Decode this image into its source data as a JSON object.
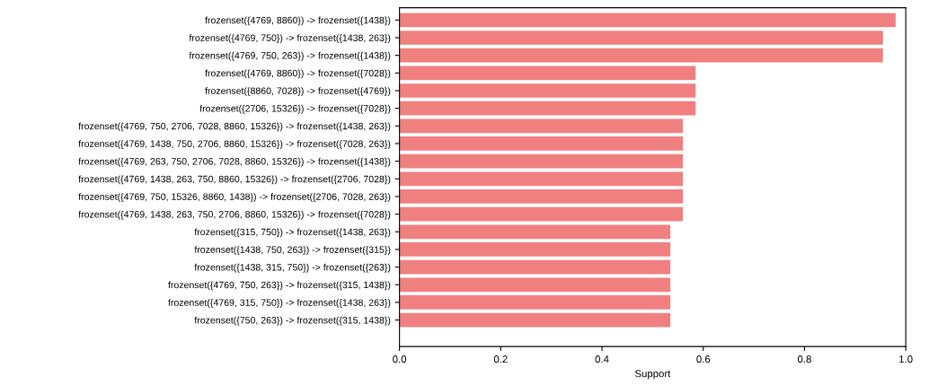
{
  "chart_data": {
    "type": "bar",
    "orientation": "horizontal",
    "xlabel": "Support",
    "categories": [
      "frozenset({4769, 8860}) -> frozenset({1438})",
      "frozenset({4769, 750}) -> frozenset({1438, 263})",
      "frozenset({4769, 750, 263}) -> frozenset({1438})",
      "frozenset({4769, 8860}) -> frozenset({7028})",
      "frozenset({8860, 7028}) -> frozenset({4769})",
      "frozenset({2706, 15326}) -> frozenset({7028})",
      "frozenset({4769, 750, 2706, 7028, 8860, 15326}) -> frozenset({1438, 263})",
      "frozenset({4769, 1438, 750, 2706, 8860, 15326}) -> frozenset({7028, 263})",
      "frozenset({4769, 263, 750, 2706, 7028, 8860, 15326}) -> frozenset({1438})",
      "frozenset({4769, 1438, 263, 750, 8860, 15326}) -> frozenset({2706, 7028})",
      "frozenset({4769, 750, 15326, 8860, 1438}) -> frozenset({2706, 7028, 263})",
      "frozenset({4769, 1438, 263, 750, 2706, 8860, 15326}) -> frozenset({7028})",
      "frozenset({315, 750}) -> frozenset({1438, 263})",
      "frozenset({1438, 750, 263}) -> frozenset({315})",
      "frozenset({1438, 315, 750}) -> frozenset({263})",
      "frozenset({4769, 750, 263}) -> frozenset({315, 1438})",
      "frozenset({4769, 315, 750}) -> frozenset({1438, 263})",
      "frozenset({750, 263}) -> frozenset({315, 1438})"
    ],
    "values": [
      0.98,
      0.955,
      0.955,
      0.585,
      0.585,
      0.585,
      0.56,
      0.56,
      0.56,
      0.56,
      0.56,
      0.56,
      0.535,
      0.535,
      0.535,
      0.535,
      0.535,
      0.535
    ],
    "color": "#f08080",
    "xlim": [
      0,
      1
    ],
    "xticks": [
      {
        "value": 0,
        "label": "0.0"
      },
      0.2,
      0.4,
      0.6,
      0.8,
      {
        "value": 1,
        "label": "1.0"
      }
    ],
    "grid": false
  }
}
